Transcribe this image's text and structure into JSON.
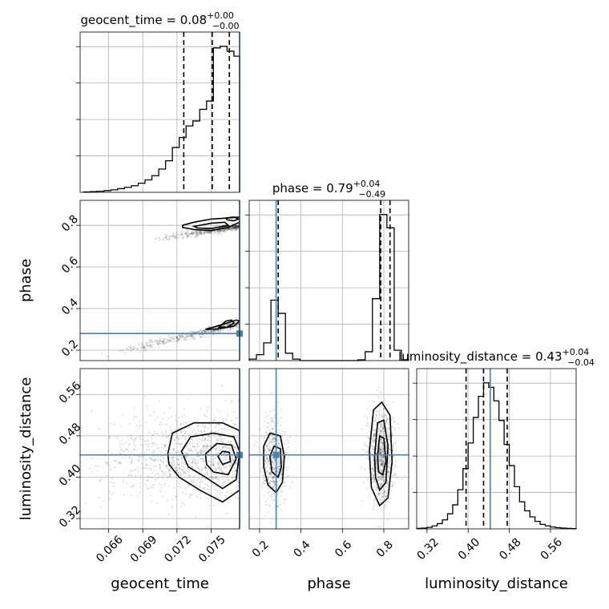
{
  "chart_data": {
    "type": "corner",
    "grid": true,
    "truth_color": "#4682b4",
    "parameters": [
      {
        "key": "geocent_time",
        "label": "geocent_time",
        "range": [
          0.0635,
          0.0775
        ],
        "ticks": [
          "0.066",
          "0.069",
          "0.072",
          "0.075"
        ],
        "tick_values": [
          0.066,
          0.069,
          0.072,
          0.075
        ],
        "truth": 0.0775
      },
      {
        "key": "phase",
        "label": "phase",
        "range": [
          0.15,
          0.92
        ],
        "ticks": [
          "0.2",
          "0.4",
          "0.6",
          "0.8"
        ],
        "tick_values": [
          0.2,
          0.4,
          0.6,
          0.8
        ],
        "truth": 0.28
      },
      {
        "key": "luminosity_distance",
        "label": "luminosity_distance",
        "range": [
          0.3,
          0.61
        ],
        "ticks": [
          "0.32",
          "0.40",
          "0.48",
          "0.56"
        ],
        "tick_values": [
          0.32,
          0.4,
          0.48,
          0.56
        ],
        "truth": 0.443
      }
    ],
    "titles": [
      {
        "text": "geocent_time = 0.08$^{+0.00}_{-0.00}$",
        "base": "geocent_time = 0.08",
        "up": "+0.00",
        "down": "−0.00"
      },
      {
        "text": "phase = 0.79$^{+0.04}_{-0.49}$",
        "base": "phase = 0.79",
        "up": "+0.04",
        "down": "−0.49"
      },
      {
        "text": "luminosity_distance = 0.43$^{+0.04}_{-0.04}$",
        "base": "luminosity_distance = 0.43",
        "up": "+0.04",
        "down": "−0.04"
      }
    ],
    "marginals": [
      {
        "param": "geocent_time",
        "quantiles": [
          0.0726,
          0.0751,
          0.0766
        ],
        "bin_edges": [
          0.0638,
          0.0644,
          0.065,
          0.0656,
          0.0662,
          0.0668,
          0.0674,
          0.068,
          0.0686,
          0.0692,
          0.0698,
          0.0704,
          0.071,
          0.0716,
          0.0722,
          0.0728,
          0.0734,
          0.074,
          0.0746,
          0.0752,
          0.0758,
          0.0764,
          0.077,
          0.0775
        ],
        "counts": [
          0.002,
          0.004,
          0.006,
          0.01,
          0.015,
          0.022,
          0.03,
          0.04,
          0.055,
          0.075,
          0.1,
          0.14,
          0.19,
          0.27,
          0.33,
          0.4,
          0.43,
          0.5,
          0.55,
          0.87,
          0.88,
          0.85,
          0.82
        ]
      },
      {
        "param": "phase",
        "quantiles": [
          0.29,
          0.785,
          0.83
        ],
        "bin_edges": [
          0.15,
          0.185,
          0.22,
          0.255,
          0.29,
          0.325,
          0.36,
          0.395,
          0.43,
          0.465,
          0.5,
          0.535,
          0.57,
          0.605,
          0.64,
          0.675,
          0.71,
          0.745,
          0.78,
          0.815,
          0.85,
          0.885,
          0.92
        ],
        "counts": [
          0.01,
          0.04,
          0.12,
          0.41,
          0.32,
          0.05,
          0.01,
          0,
          0,
          0,
          0,
          0,
          0,
          0,
          0,
          0.005,
          0.06,
          0.42,
          0.99,
          0.9,
          0.07,
          0.005
        ]
      },
      {
        "param": "luminosity_distance",
        "quantiles": [
          0.396,
          0.43,
          0.476
        ],
        "bin_edges": [
          0.3,
          0.31,
          0.32,
          0.33,
          0.34,
          0.35,
          0.36,
          0.37,
          0.38,
          0.39,
          0.4,
          0.41,
          0.42,
          0.43,
          0.44,
          0.45,
          0.46,
          0.47,
          0.48,
          0.49,
          0.5,
          0.51,
          0.52,
          0.53,
          0.54,
          0.55,
          0.56,
          0.57,
          0.58,
          0.59,
          0.6,
          0.61
        ],
        "counts": [
          0.003,
          0.005,
          0.01,
          0.02,
          0.035,
          0.06,
          0.1,
          0.16,
          0.26,
          0.4,
          0.57,
          0.74,
          0.88,
          0.97,
          0.94,
          0.85,
          0.72,
          0.56,
          0.42,
          0.28,
          0.18,
          0.12,
          0.08,
          0.05,
          0.03,
          0.02,
          0.012,
          0.008,
          0.005,
          0.003,
          0.002
        ]
      }
    ],
    "density_panels": [
      {
        "x": "geocent_time",
        "y": "phase",
        "contours": [
          [
            [
              0.0725,
              0.8
            ],
            [
              0.0735,
              0.815
            ],
            [
              0.075,
              0.83
            ],
            [
              0.0765,
              0.835
            ],
            [
              0.0775,
              0.84
            ],
            [
              0.0775,
              0.815
            ],
            [
              0.0765,
              0.79
            ],
            [
              0.075,
              0.775
            ],
            [
              0.0735,
              0.78
            ],
            [
              0.0725,
              0.79
            ]
          ],
          [
            [
              0.0735,
              0.795
            ],
            [
              0.075,
              0.81
            ],
            [
              0.0762,
              0.815
            ],
            [
              0.0765,
              0.8
            ],
            [
              0.075,
              0.785
            ],
            [
              0.0738,
              0.787
            ]
          ],
          [
            [
              0.0763,
              0.835
            ],
            [
              0.077,
              0.84
            ],
            [
              0.0774,
              0.83
            ],
            [
              0.077,
              0.822
            ],
            [
              0.0764,
              0.826
            ]
          ],
          [
            [
              0.0757,
              0.31
            ],
            [
              0.0763,
              0.34
            ],
            [
              0.0768,
              0.345
            ],
            [
              0.077,
              0.33
            ],
            [
              0.0764,
              0.31
            ]
          ],
          [
            [
              0.0745,
              0.3
            ],
            [
              0.0758,
              0.32
            ],
            [
              0.0772,
              0.345
            ],
            [
              0.0775,
              0.34
            ],
            [
              0.077,
              0.315
            ],
            [
              0.0756,
              0.302
            ]
          ]
        ]
      },
      {
        "x": "geocent_time",
        "y": "luminosity_distance",
        "contours": [
          [
            [
              0.0712,
              0.445
            ],
            [
              0.0716,
              0.485
            ],
            [
              0.0735,
              0.505
            ],
            [
              0.076,
              0.505
            ],
            [
              0.0775,
              0.49
            ],
            [
              0.0775,
              0.375
            ],
            [
              0.076,
              0.352
            ],
            [
              0.074,
              0.375
            ],
            [
              0.0722,
              0.4
            ],
            [
              0.0713,
              0.425
            ]
          ],
          [
            [
              0.0724,
              0.45
            ],
            [
              0.0732,
              0.478
            ],
            [
              0.0752,
              0.485
            ],
            [
              0.077,
              0.478
            ],
            [
              0.0775,
              0.45
            ],
            [
              0.0772,
              0.395
            ],
            [
              0.076,
              0.378
            ],
            [
              0.0745,
              0.4
            ],
            [
              0.073,
              0.42
            ]
          ],
          [
            [
              0.0745,
              0.445
            ],
            [
              0.0755,
              0.465
            ],
            [
              0.0768,
              0.462
            ],
            [
              0.0772,
              0.435
            ],
            [
              0.0765,
              0.405
            ],
            [
              0.0752,
              0.41
            ],
            [
              0.0746,
              0.425
            ]
          ],
          [
            [
              0.0756,
              0.44
            ],
            [
              0.076,
              0.45
            ],
            [
              0.0766,
              0.448
            ],
            [
              0.0767,
              0.43
            ],
            [
              0.076,
              0.425
            ]
          ]
        ]
      },
      {
        "x": "phase",
        "y": "luminosity_distance",
        "contours": [
          [
            [
              0.22,
              0.46
            ],
            [
              0.25,
              0.485
            ],
            [
              0.3,
              0.48
            ],
            [
              0.32,
              0.44
            ],
            [
              0.31,
              0.39
            ],
            [
              0.28,
              0.37
            ],
            [
              0.24,
              0.385
            ],
            [
              0.22,
              0.42
            ]
          ],
          [
            [
              0.25,
              0.44
            ],
            [
              0.27,
              0.46
            ],
            [
              0.3,
              0.455
            ],
            [
              0.305,
              0.42
            ],
            [
              0.29,
              0.4
            ],
            [
              0.26,
              0.41
            ]
          ],
          [
            [
              0.73,
              0.45
            ],
            [
              0.75,
              0.53
            ],
            [
              0.79,
              0.545
            ],
            [
              0.83,
              0.52
            ],
            [
              0.84,
              0.43
            ],
            [
              0.82,
              0.36
            ],
            [
              0.78,
              0.345
            ],
            [
              0.74,
              0.38
            ]
          ],
          [
            [
              0.755,
              0.44
            ],
            [
              0.77,
              0.505
            ],
            [
              0.8,
              0.51
            ],
            [
              0.82,
              0.46
            ],
            [
              0.81,
              0.39
            ],
            [
              0.78,
              0.375
            ],
            [
              0.76,
              0.4
            ]
          ],
          [
            [
              0.77,
              0.44
            ],
            [
              0.78,
              0.48
            ],
            [
              0.8,
              0.475
            ],
            [
              0.81,
              0.43
            ],
            [
              0.795,
              0.405
            ],
            [
              0.775,
              0.41
            ]
          ]
        ]
      }
    ]
  }
}
